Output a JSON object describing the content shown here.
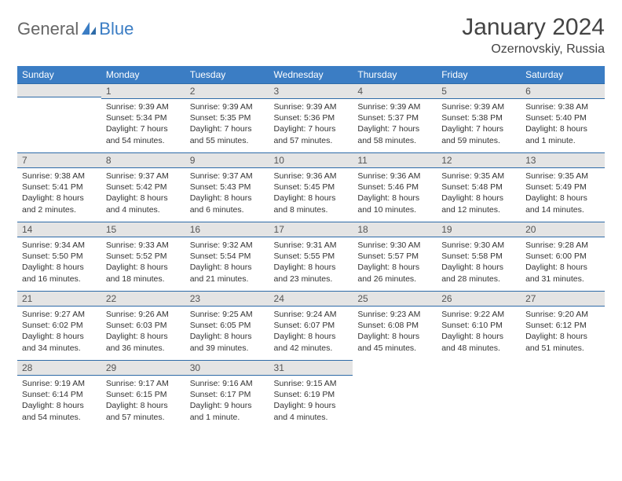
{
  "logo": {
    "part1": "General",
    "part2": "Blue",
    "color1": "#666666",
    "color2": "#3b7dc4"
  },
  "title": "January 2024",
  "location": "Ozernovskiy, Russia",
  "colors": {
    "header_bg": "#3b7dc4",
    "header_text": "#ffffff",
    "daynum_bg": "#e4e4e4",
    "border": "#2e6ba8",
    "body_text": "#333333"
  },
  "day_headers": [
    "Sunday",
    "Monday",
    "Tuesday",
    "Wednesday",
    "Thursday",
    "Friday",
    "Saturday"
  ],
  "weeks": [
    [
      {
        "n": "",
        "sr": "",
        "ss": "",
        "dl": ""
      },
      {
        "n": "1",
        "sr": "Sunrise: 9:39 AM",
        "ss": "Sunset: 5:34 PM",
        "dl": "Daylight: 7 hours and 54 minutes."
      },
      {
        "n": "2",
        "sr": "Sunrise: 9:39 AM",
        "ss": "Sunset: 5:35 PM",
        "dl": "Daylight: 7 hours and 55 minutes."
      },
      {
        "n": "3",
        "sr": "Sunrise: 9:39 AM",
        "ss": "Sunset: 5:36 PM",
        "dl": "Daylight: 7 hours and 57 minutes."
      },
      {
        "n": "4",
        "sr": "Sunrise: 9:39 AM",
        "ss": "Sunset: 5:37 PM",
        "dl": "Daylight: 7 hours and 58 minutes."
      },
      {
        "n": "5",
        "sr": "Sunrise: 9:39 AM",
        "ss": "Sunset: 5:38 PM",
        "dl": "Daylight: 7 hours and 59 minutes."
      },
      {
        "n": "6",
        "sr": "Sunrise: 9:38 AM",
        "ss": "Sunset: 5:40 PM",
        "dl": "Daylight: 8 hours and 1 minute."
      }
    ],
    [
      {
        "n": "7",
        "sr": "Sunrise: 9:38 AM",
        "ss": "Sunset: 5:41 PM",
        "dl": "Daylight: 8 hours and 2 minutes."
      },
      {
        "n": "8",
        "sr": "Sunrise: 9:37 AM",
        "ss": "Sunset: 5:42 PM",
        "dl": "Daylight: 8 hours and 4 minutes."
      },
      {
        "n": "9",
        "sr": "Sunrise: 9:37 AM",
        "ss": "Sunset: 5:43 PM",
        "dl": "Daylight: 8 hours and 6 minutes."
      },
      {
        "n": "10",
        "sr": "Sunrise: 9:36 AM",
        "ss": "Sunset: 5:45 PM",
        "dl": "Daylight: 8 hours and 8 minutes."
      },
      {
        "n": "11",
        "sr": "Sunrise: 9:36 AM",
        "ss": "Sunset: 5:46 PM",
        "dl": "Daylight: 8 hours and 10 minutes."
      },
      {
        "n": "12",
        "sr": "Sunrise: 9:35 AM",
        "ss": "Sunset: 5:48 PM",
        "dl": "Daylight: 8 hours and 12 minutes."
      },
      {
        "n": "13",
        "sr": "Sunrise: 9:35 AM",
        "ss": "Sunset: 5:49 PM",
        "dl": "Daylight: 8 hours and 14 minutes."
      }
    ],
    [
      {
        "n": "14",
        "sr": "Sunrise: 9:34 AM",
        "ss": "Sunset: 5:50 PM",
        "dl": "Daylight: 8 hours and 16 minutes."
      },
      {
        "n": "15",
        "sr": "Sunrise: 9:33 AM",
        "ss": "Sunset: 5:52 PM",
        "dl": "Daylight: 8 hours and 18 minutes."
      },
      {
        "n": "16",
        "sr": "Sunrise: 9:32 AM",
        "ss": "Sunset: 5:54 PM",
        "dl": "Daylight: 8 hours and 21 minutes."
      },
      {
        "n": "17",
        "sr": "Sunrise: 9:31 AM",
        "ss": "Sunset: 5:55 PM",
        "dl": "Daylight: 8 hours and 23 minutes."
      },
      {
        "n": "18",
        "sr": "Sunrise: 9:30 AM",
        "ss": "Sunset: 5:57 PM",
        "dl": "Daylight: 8 hours and 26 minutes."
      },
      {
        "n": "19",
        "sr": "Sunrise: 9:30 AM",
        "ss": "Sunset: 5:58 PM",
        "dl": "Daylight: 8 hours and 28 minutes."
      },
      {
        "n": "20",
        "sr": "Sunrise: 9:28 AM",
        "ss": "Sunset: 6:00 PM",
        "dl": "Daylight: 8 hours and 31 minutes."
      }
    ],
    [
      {
        "n": "21",
        "sr": "Sunrise: 9:27 AM",
        "ss": "Sunset: 6:02 PM",
        "dl": "Daylight: 8 hours and 34 minutes."
      },
      {
        "n": "22",
        "sr": "Sunrise: 9:26 AM",
        "ss": "Sunset: 6:03 PM",
        "dl": "Daylight: 8 hours and 36 minutes."
      },
      {
        "n": "23",
        "sr": "Sunrise: 9:25 AM",
        "ss": "Sunset: 6:05 PM",
        "dl": "Daylight: 8 hours and 39 minutes."
      },
      {
        "n": "24",
        "sr": "Sunrise: 9:24 AM",
        "ss": "Sunset: 6:07 PM",
        "dl": "Daylight: 8 hours and 42 minutes."
      },
      {
        "n": "25",
        "sr": "Sunrise: 9:23 AM",
        "ss": "Sunset: 6:08 PM",
        "dl": "Daylight: 8 hours and 45 minutes."
      },
      {
        "n": "26",
        "sr": "Sunrise: 9:22 AM",
        "ss": "Sunset: 6:10 PM",
        "dl": "Daylight: 8 hours and 48 minutes."
      },
      {
        "n": "27",
        "sr": "Sunrise: 9:20 AM",
        "ss": "Sunset: 6:12 PM",
        "dl": "Daylight: 8 hours and 51 minutes."
      }
    ],
    [
      {
        "n": "28",
        "sr": "Sunrise: 9:19 AM",
        "ss": "Sunset: 6:14 PM",
        "dl": "Daylight: 8 hours and 54 minutes."
      },
      {
        "n": "29",
        "sr": "Sunrise: 9:17 AM",
        "ss": "Sunset: 6:15 PM",
        "dl": "Daylight: 8 hours and 57 minutes."
      },
      {
        "n": "30",
        "sr": "Sunrise: 9:16 AM",
        "ss": "Sunset: 6:17 PM",
        "dl": "Daylight: 9 hours and 1 minute."
      },
      {
        "n": "31",
        "sr": "Sunrise: 9:15 AM",
        "ss": "Sunset: 6:19 PM",
        "dl": "Daylight: 9 hours and 4 minutes."
      },
      {
        "n": "",
        "sr": "",
        "ss": "",
        "dl": ""
      },
      {
        "n": "",
        "sr": "",
        "ss": "",
        "dl": ""
      },
      {
        "n": "",
        "sr": "",
        "ss": "",
        "dl": ""
      }
    ]
  ]
}
